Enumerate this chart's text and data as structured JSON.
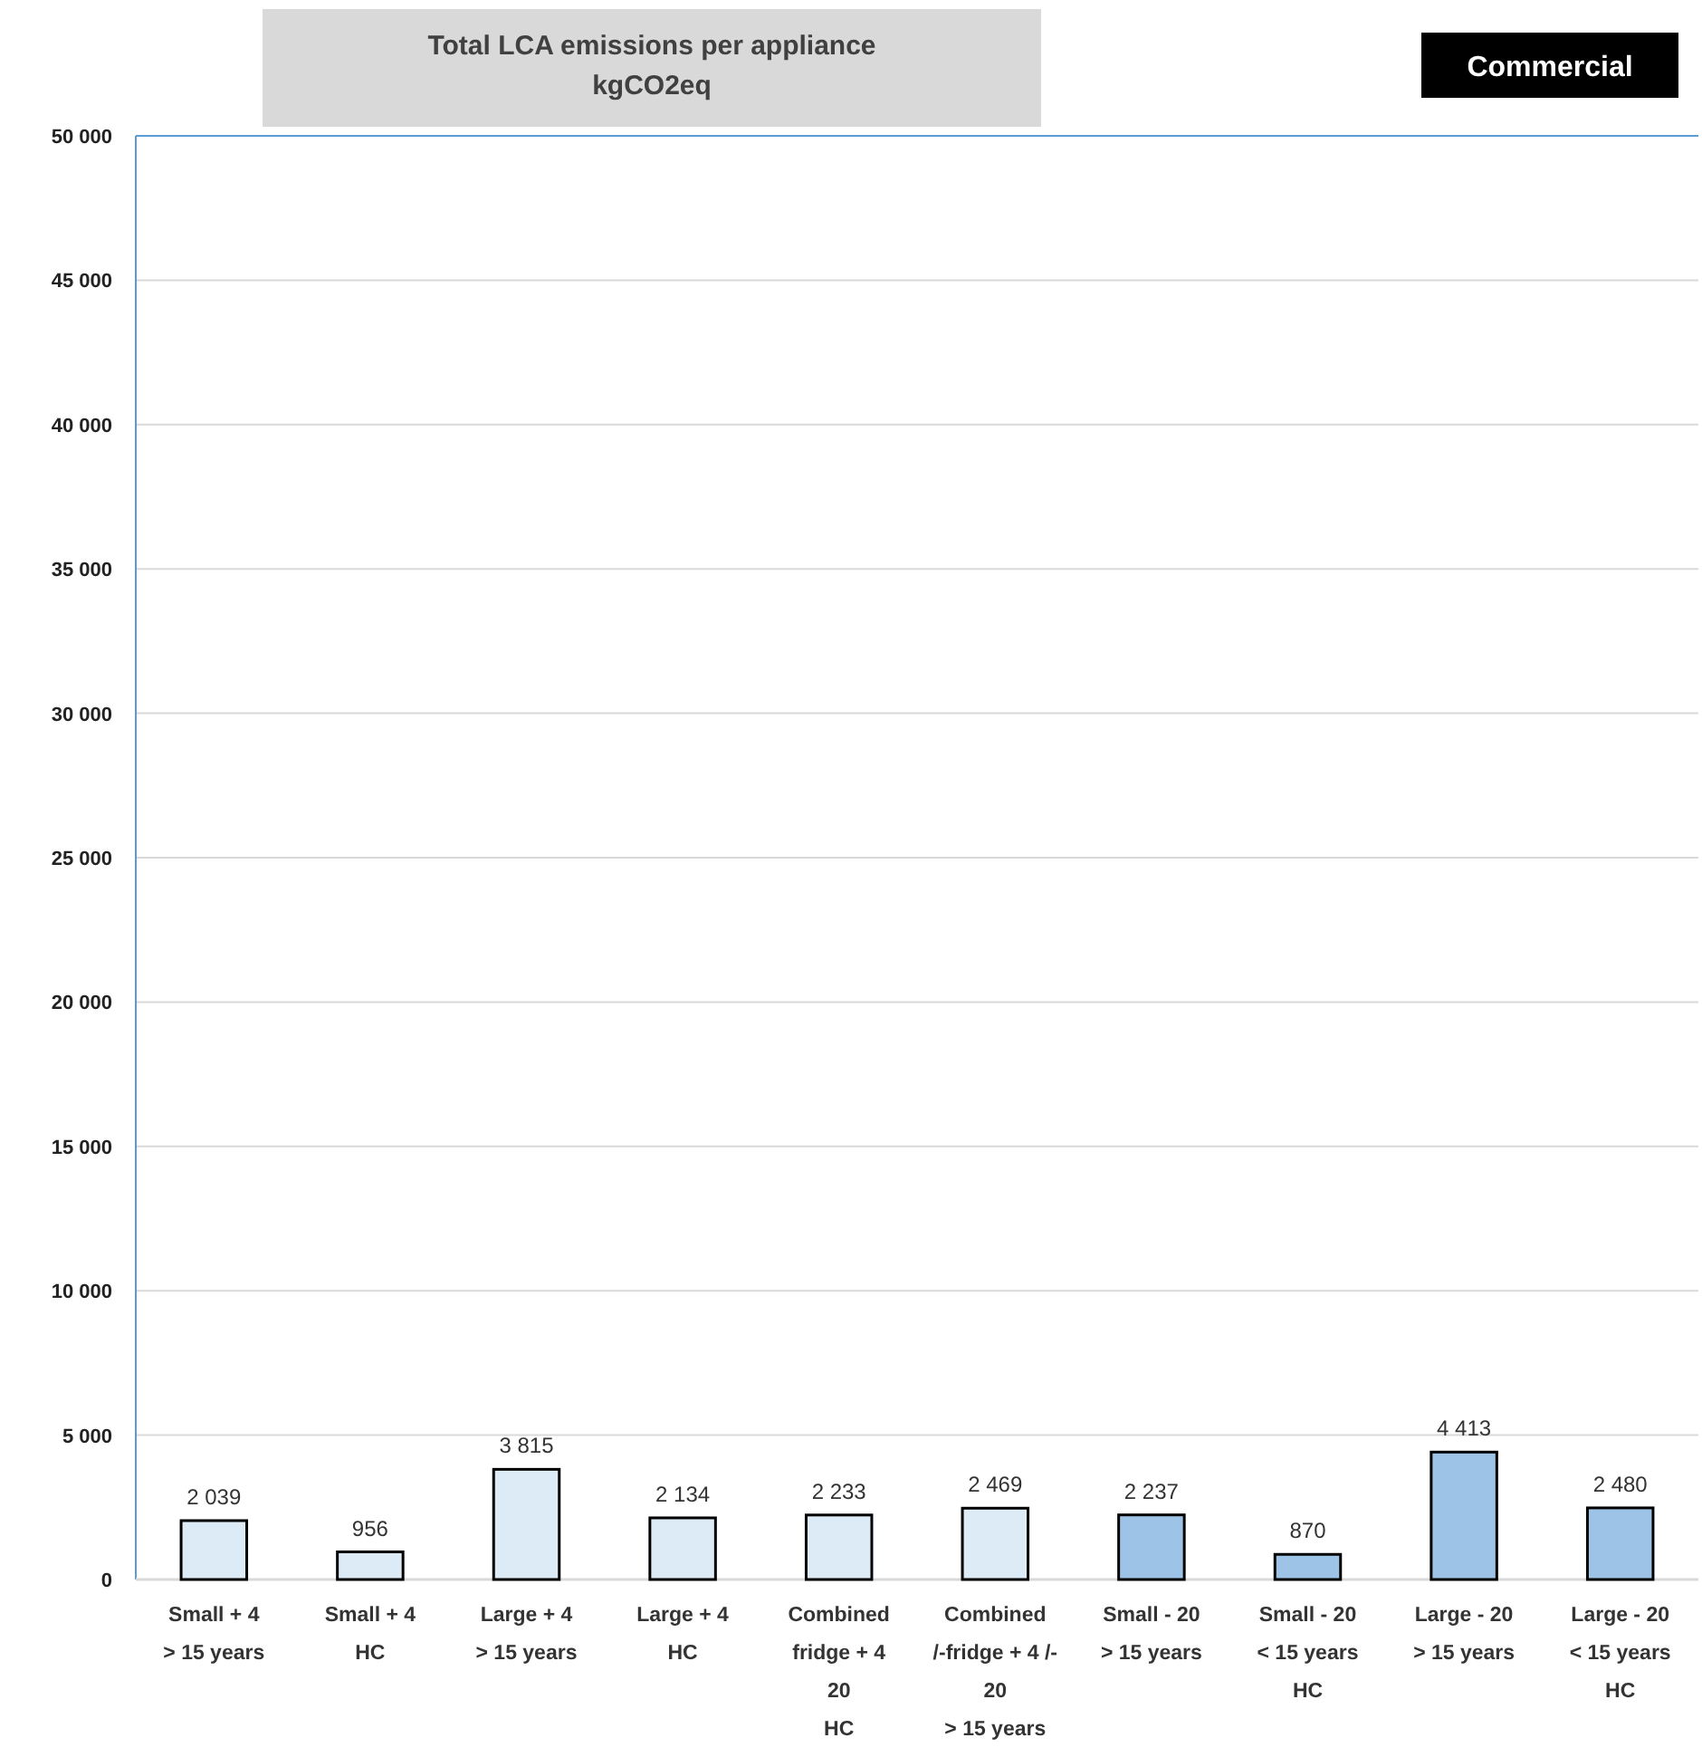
{
  "chart_data": {
    "type": "bar",
    "title": "Total LCA emissions per appliance\nkgCO2eq",
    "subtitle": "Commercial",
    "categories": [
      "Small + 4\n> 15 years",
      "Small + 4\nHC",
      "Large + 4\n> 15 years",
      "Large + 4\nHC",
      "Combined\nfridge  + 4\n20\nHC",
      "Combined\n/-fridge + 4 /-\n20\n> 15 years",
      "Small - 20\n> 15 years",
      "Small - 20\n< 15 years\nHC",
      "Large - 20\n> 15 years",
      "Large - 20\n< 15 years\nHC"
    ],
    "values": [
      2039,
      956,
      3815,
      2134,
      2233,
      2469,
      2237,
      870,
      4413,
      2480
    ],
    "colors": [
      "#ddebf7",
      "#ddebf7",
      "#ddebf7",
      "#ddebf7",
      "#ddebf7",
      "#ddebf7",
      "#9dc3e6",
      "#9dc3e6",
      "#9dc3e6",
      "#9dc3e6"
    ],
    "value_labels": [
      "2 039",
      "956",
      "3 815",
      "2 134",
      "2 233",
      "2 469",
      "2 237",
      "870",
      "4 413",
      "2 480"
    ],
    "ylim": [
      0,
      50000
    ],
    "yticks": [
      0,
      {
        "value": 5000,
        "label": "5 000"
      },
      {
        "value": 10000,
        "label": "10 000"
      },
      {
        "value": 15000,
        "label": "15 000"
      },
      {
        "value": 20000,
        "label": "20 000"
      },
      {
        "value": 25000,
        "label": "25 000"
      },
      {
        "value": 30000,
        "label": "30 000"
      },
      {
        "value": 35000,
        "label": "35 000"
      },
      {
        "value": 40000,
        "label": "40 000"
      },
      {
        "value": 45000,
        "label": "45 000"
      },
      {
        "value": 50000,
        "label": "50 000"
      }
    ],
    "grid": "y"
  }
}
